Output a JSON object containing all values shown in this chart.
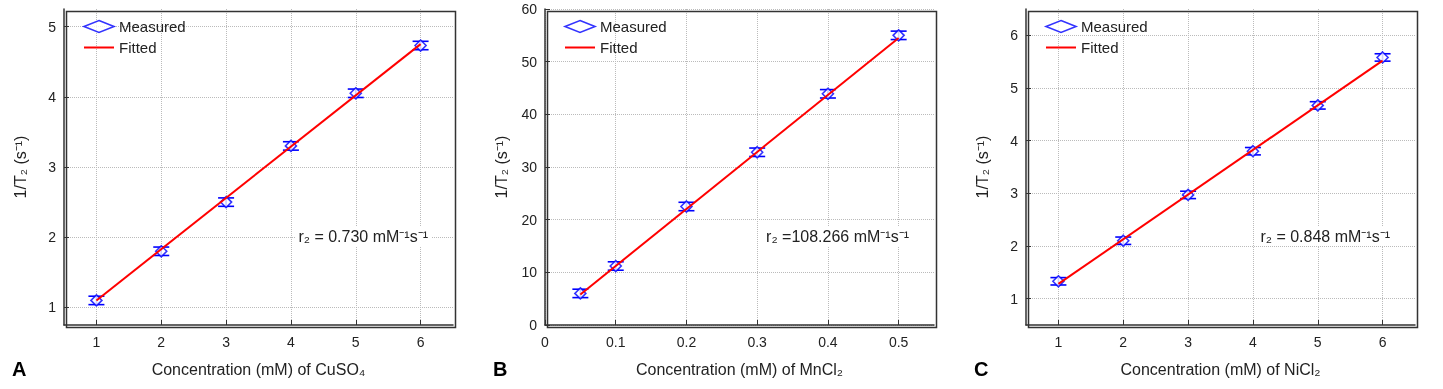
{
  "chart_data": [
    {
      "type": "scatter",
      "xlabel": "Concentration (mM) of CuSO₄",
      "ylabel": "1/T₂ (s⁻¹)",
      "annotations": [
        "A",
        "r₂ = 0.730 mM⁻¹s⁻¹"
      ],
      "xlim": [
        0.5,
        6.5
      ],
      "xticks": [
        1,
        2,
        3,
        4,
        5,
        6
      ],
      "ylim": [
        0.75,
        5.25
      ],
      "yticks": [
        1,
        2,
        3,
        4,
        5
      ],
      "grid": true,
      "legend": "top left",
      "series": [
        {
          "name": "Measured",
          "type": "scatter",
          "color": "#0000ff",
          "marker": "diamond",
          "x": [
            1,
            2,
            3,
            4,
            5,
            6
          ],
          "values": [
            1.1,
            1.8,
            2.5,
            3.3,
            4.05,
            4.73
          ],
          "errors": [
            0.06,
            0.06,
            0.06,
            0.06,
            0.06,
            0.06
          ]
        },
        {
          "name": "Fitted",
          "type": "line",
          "color": "#ff0000",
          "marker": "none",
          "line_style": "solid",
          "x": [
            1,
            6
          ],
          "values": [
            1.1,
            4.75
          ]
        }
      ]
    },
    {
      "type": "scatter",
      "xlabel": "Concentration (mM) of MnCl₂",
      "ylabel": "1/T₂ (s⁻¹)",
      "annotations": [
        "B",
        "r₂ =108.266 mM⁻¹s⁻¹"
      ],
      "xlim": [
        0,
        0.55
      ],
      "xticks": [
        0,
        0.1,
        0.2,
        0.3,
        0.4,
        0.5
      ],
      "ylim": [
        0,
        60
      ],
      "yticks": [
        0,
        10,
        20,
        30,
        40,
        50,
        60
      ],
      "grid": true,
      "legend": "top left",
      "series": [
        {
          "name": "Measured",
          "type": "scatter",
          "color": "#0000ff",
          "marker": "diamond",
          "x": [
            0.05,
            0.1,
            0.2,
            0.3,
            0.4,
            0.5
          ],
          "values": [
            6,
            11.2,
            22.5,
            32.8,
            43.9,
            55
          ],
          "errors": [
            0.8,
            0.8,
            0.8,
            0.8,
            0.8,
            0.8
          ]
        },
        {
          "name": "Fitted",
          "type": "line",
          "color": "#ff0000",
          "marker": "none",
          "line_style": "solid",
          "x": [
            0.05,
            0.5
          ],
          "values": [
            5.8,
            54.5
          ]
        }
      ]
    },
    {
      "type": "scatter",
      "xlabel": "Concentration (mM) of NiCl₂",
      "ylabel": "1/T₂ (s⁻¹)",
      "annotations": [
        "C",
        "r₂ = 0.848 mM⁻¹s⁻¹"
      ],
      "xlim": [
        0.5,
        6.5
      ],
      "xticks": [
        1,
        2,
        3,
        4,
        5,
        6
      ],
      "ylim": [
        0.5,
        6.5
      ],
      "yticks": [
        1,
        2,
        3,
        4,
        5,
        6
      ],
      "grid": true,
      "legend": "top left",
      "series": [
        {
          "name": "Measured",
          "type": "scatter",
          "color": "#0000ff",
          "marker": "diamond",
          "x": [
            1,
            2,
            3,
            4,
            5,
            6
          ],
          "values": [
            1.33,
            2.1,
            2.97,
            3.8,
            4.67,
            5.58
          ],
          "errors": [
            0.07,
            0.07,
            0.07,
            0.07,
            0.07,
            0.07
          ]
        },
        {
          "name": "Fitted",
          "type": "line",
          "color": "#ff0000",
          "marker": "none",
          "line_style": "solid",
          "x": [
            1,
            6
          ],
          "values": [
            1.28,
            5.52
          ]
        }
      ]
    }
  ]
}
